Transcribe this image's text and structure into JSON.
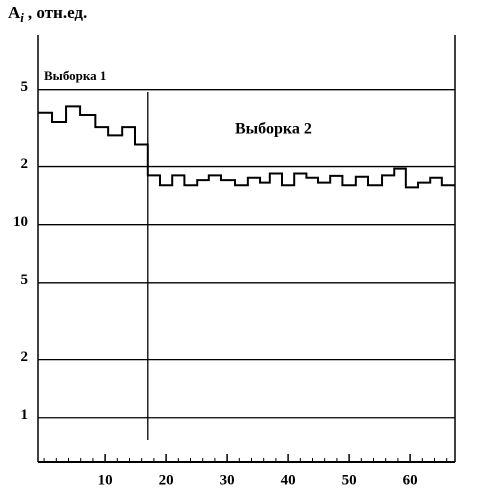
{
  "chart_data": {
    "type": "step",
    "y_label": "A",
    "y_label_sub": "i",
    "y_label_rest": ", отн.ед.",
    "annotations": [
      "Выборка 1",
      "Выборка 2"
    ],
    "divider_x": 17,
    "x": [
      -1,
      1.3,
      3.6,
      5.9,
      8.4,
      10.5,
      12.8,
      14.9,
      17,
      19,
      21,
      23,
      25.1,
      27,
      29,
      31.3,
      33.4,
      35.4,
      37,
      39,
      41,
      43,
      44.9,
      46.9,
      48.9,
      51.1,
      53.1,
      55.4,
      57.4,
      59.3,
      61.3,
      63.3,
      65.2
    ],
    "values": [
      38,
      34,
      41,
      37,
      32,
      29,
      32,
      26,
      18,
      16,
      18,
      16,
      17,
      18,
      17,
      16,
      17.5,
      16.5,
      18.4,
      16,
      18.4,
      17.5,
      16.5,
      17.9,
      16,
      17.7,
      16,
      18,
      19.5,
      15.6,
      16.5,
      17.5,
      16
    ],
    "color": "#000000",
    "xlim": [
      -1,
      67.36
    ],
    "xticks": [
      10,
      20,
      30,
      40,
      50,
      60
    ],
    "xminorticks": [
      0,
      2,
      4,
      6,
      8,
      12,
      14,
      16,
      18,
      22,
      24,
      26,
      28,
      32,
      34,
      36,
      38,
      42,
      44,
      46,
      48,
      52,
      54,
      56,
      58,
      62,
      64,
      66
    ],
    "ylim": [
      0.59,
      96
    ],
    "ylog": true,
    "yticks": [
      1,
      2,
      5,
      10,
      {
        "value": 20,
        "label": "2"
      },
      {
        "value": 50,
        "label": "5"
      }
    ],
    "grid": true
  }
}
